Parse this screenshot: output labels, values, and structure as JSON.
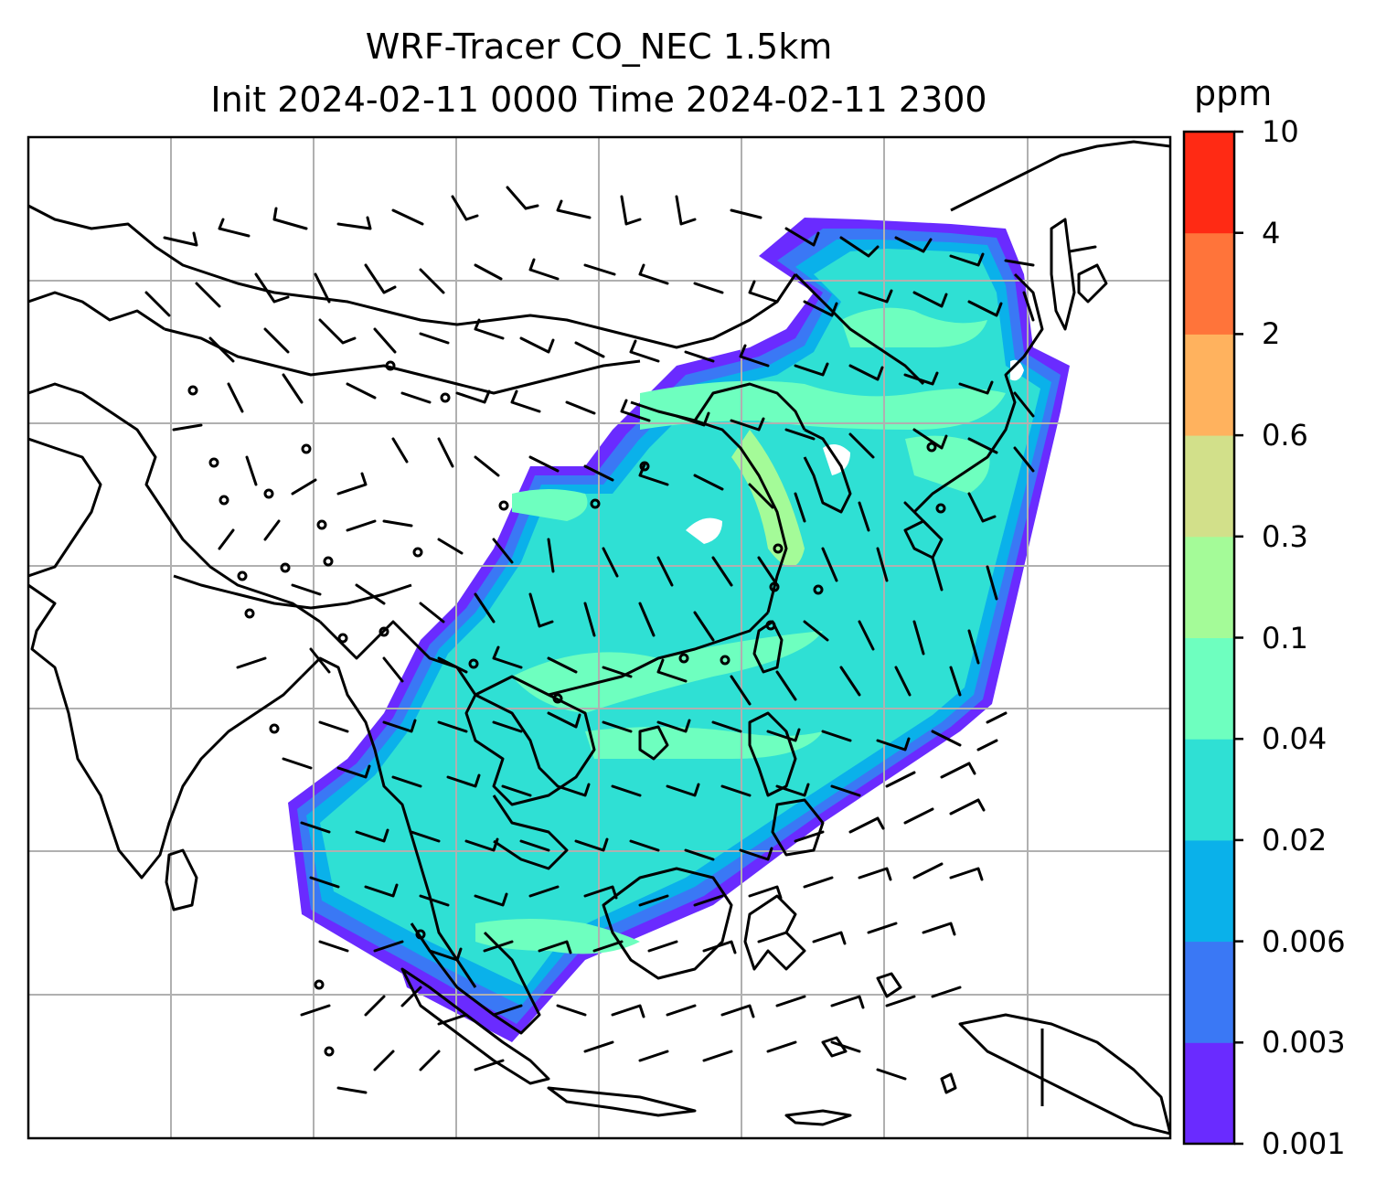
{
  "title": {
    "line1": "WRF-Tracer CO_NEC 1.5km",
    "line2": "Init 2024-02-11 0000 Time 2024-02-11 2300"
  },
  "colorbar": {
    "unit": "ppm",
    "ticks": [
      "0.001",
      "0.003",
      "0.006",
      "0.02",
      "0.04",
      "0.1",
      "0.3",
      "0.6",
      "2",
      "4",
      "10"
    ],
    "colors": [
      "#6a2bff",
      "#3a78f5",
      "#0ab1ea",
      "#2fe0d4",
      "#6effbf",
      "#a4fb98",
      "#d2e08a",
      "#ffb25e",
      "#ff743a",
      "#ff2a14"
    ]
  },
  "map": {
    "grid_lines": "on",
    "field": "CO_NEC tracer concentration shading",
    "overlay": "wind barbs with calm circles",
    "coastline_color": "#000000",
    "grid_color": "#b0b0b0"
  }
}
